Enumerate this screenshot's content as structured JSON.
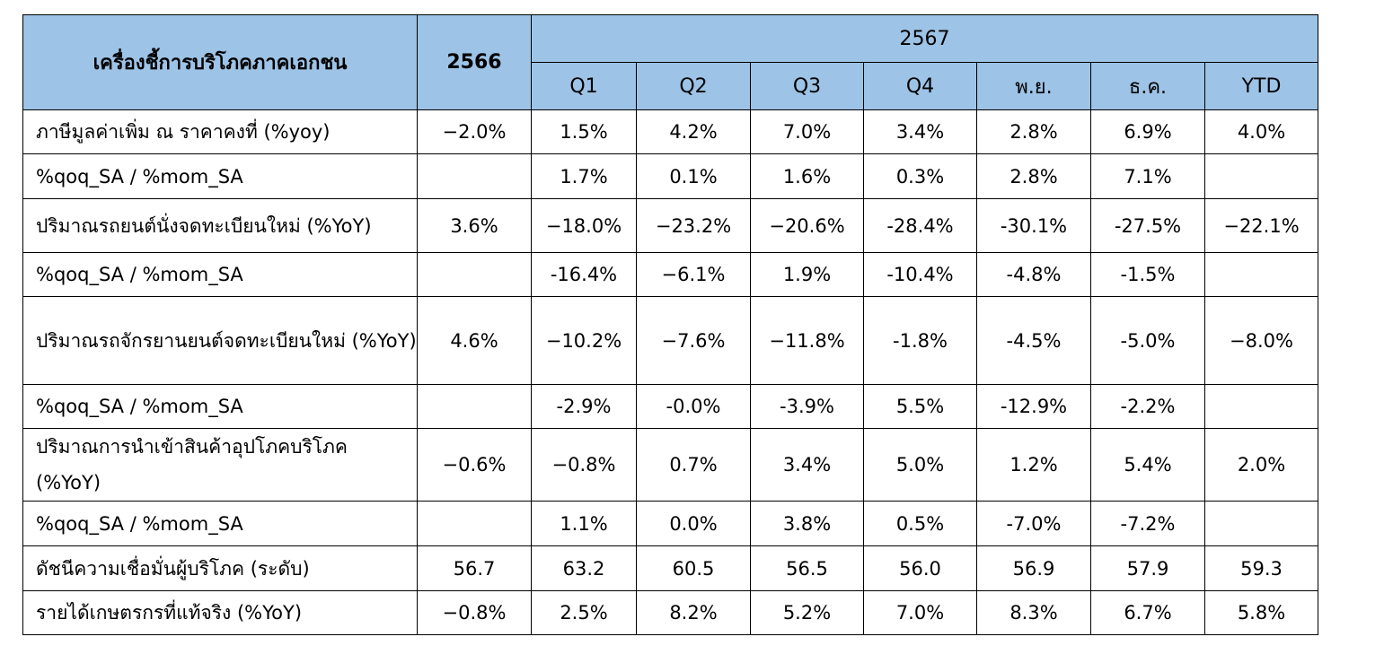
{
  "header": {
    "indicator_label": "เครื่องชี้การบริโภคภาคเอกชน",
    "year_prev": "2566",
    "year_curr": "2567",
    "periods": [
      "Q1",
      "Q2",
      "Q3",
      "Q4",
      "พ.ย.",
      "ธ.ค.",
      "YTD"
    ]
  },
  "rows": [
    {
      "label": "ภาษีมูลค่าเพิ่ม ณ ราคาคงที่ (%yoy)",
      "values": [
        "−2.0%",
        "1.5%",
        "4.2%",
        "7.0%",
        "3.4%",
        "2.8%",
        "6.9%",
        "4.0%"
      ]
    },
    {
      "label": "%qoq_SA / %mom_SA",
      "values": [
        "",
        "1.7%",
        "0.1%",
        "1.6%",
        "0.3%",
        "2.8%",
        "7.1%",
        ""
      ]
    },
    {
      "label": "ปริมาณรถยนต์นั่งจดทะเบียนใหม่ (%YoY)",
      "values": [
        "3.6%",
        "−18.0%",
        "−23.2%",
        "−20.6%",
        "-28.4%",
        "-30.1%",
        "-27.5%",
        "−22.1%"
      ]
    },
    {
      "label": "%qoq_SA / %mom_SA",
      "values": [
        "",
        "-16.4%",
        "−6.1%",
        "1.9%",
        "-10.4%",
        "-4.8%",
        "-1.5%",
        ""
      ]
    },
    {
      "label": "ปริมาณรถจักรยานยนต์จดทะเบียนใหม่ (%YoY)",
      "values": [
        "4.6%",
        "−10.2%",
        "−7.6%",
        "−11.8%",
        "-1.8%",
        "-4.5%",
        "-5.0%",
        "−8.0%"
      ]
    },
    {
      "label": "%qoq_SA / %mom_SA",
      "values": [
        "",
        "-2.9%",
        "-0.0%",
        "-3.9%",
        "5.5%",
        "-12.9%",
        "-2.2%",
        ""
      ]
    },
    {
      "label": "ปริมาณการนำเข้าสินค้าอุปโภคบริโภค (%YoY)",
      "values": [
        "−0.6%",
        "−0.8%",
        "0.7%",
        "3.4%",
        "5.0%",
        "1.2%",
        "5.4%",
        "2.0%"
      ]
    },
    {
      "label": "%qoq_SA / %mom_SA",
      "values": [
        "",
        "1.1%",
        "0.0%",
        "3.8%",
        "0.5%",
        "-7.0%",
        "-7.2%",
        ""
      ]
    },
    {
      "label": "ดัชนีความเชื่อมั่นผู้บริโภค (ระดับ)",
      "values": [
        "56.7",
        "63.2",
        "60.5",
        "56.5",
        "56.0",
        "56.9",
        "57.9",
        "59.3"
      ]
    },
    {
      "label": "รายได้เกษตรกรที่แท้จริง (%YoY)",
      "values": [
        "−0.8%",
        "2.5%",
        "8.2%",
        "5.2%",
        "7.0%",
        "8.3%",
        "6.7%",
        "5.8%"
      ]
    }
  ]
}
